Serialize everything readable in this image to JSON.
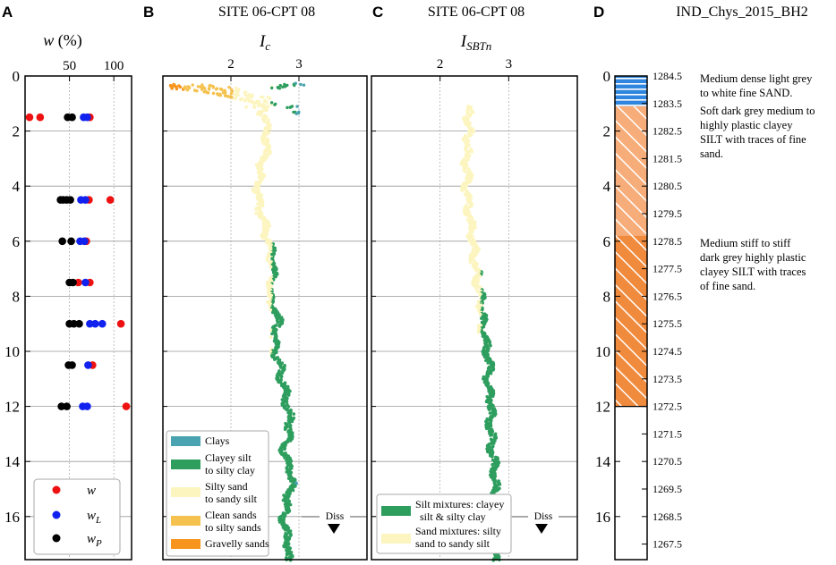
{
  "panels": {
    "A": {
      "letter": "A",
      "axis_title": "w (%)",
      "title_w": "w",
      "title_rest": " (%)"
    },
    "B": {
      "letter": "B",
      "title": "SITE 06-CPT 08",
      "axis_title": "Ic",
      "sym": "I",
      "sub": "c"
    },
    "C": {
      "letter": "C",
      "title": "SITE 06-CPT 08",
      "axis_title": "ISBTn",
      "sym": "I",
      "sub": "SBTn"
    },
    "D": {
      "letter": "D",
      "title": "IND_Chys_2015_BH2"
    }
  },
  "colors": {
    "w": "#ee1111",
    "wl": "#1122ee",
    "wp": "#000000",
    "clays": "#4aa3b0",
    "clayey_silt": "#2e9e5e",
    "silty_sand": "#fdf5c0",
    "clean_sands": "#f5c250",
    "gravelly_sands": "#f7941d",
    "sand_layer": "#2e86de",
    "silt_hatch": "#f08a3c",
    "silt_hatch_light": "#f7ad7a"
  },
  "chart_data": [
    {
      "panel": "A",
      "type": "scatter",
      "title": "",
      "xlabel": "w (%)",
      "ylabel": "",
      "xlim": [
        0,
        120
      ],
      "ylim": [
        17.7,
        0
      ],
      "xticks": [
        50,
        100
      ],
      "xtick_labels": [
        "50",
        "100"
      ],
      "yticks": [
        0,
        2,
        4,
        6,
        8,
        10,
        12,
        14,
        16
      ],
      "ytick_labels": [
        "0",
        "2",
        "4",
        "6",
        "8",
        "10",
        "12",
        "14",
        "16"
      ],
      "legend": [
        "w",
        "wL",
        "wP"
      ],
      "legend_position": "bottom-right",
      "series": [
        {
          "name": "w",
          "points": [
            [
              5,
              1.5
            ],
            [
              17,
              1.5
            ],
            [
              73,
              1.5
            ],
            [
              72,
              4.5
            ],
            [
              96,
              4.5
            ],
            [
              69,
              6
            ],
            [
              60,
              7.5
            ],
            [
              73,
              7.5
            ],
            [
              108,
              9
            ],
            [
              76,
              10.5
            ],
            [
              114,
              12
            ]
          ]
        },
        {
          "name": "wL",
          "points": [
            [
              66,
              1.5
            ],
            [
              70,
              1.5
            ],
            [
              63,
              4.5
            ],
            [
              68,
              4.5
            ],
            [
              62,
              6
            ],
            [
              67,
              6
            ],
            [
              68,
              7.5
            ],
            [
              73,
              9
            ],
            [
              79,
              9
            ],
            [
              87,
              9
            ],
            [
              71,
              10.5
            ],
            [
              65,
              12
            ],
            [
              70,
              12
            ]
          ]
        },
        {
          "name": "wP",
          "points": [
            [
              48,
              1.5
            ],
            [
              53,
              1.5
            ],
            [
              40,
              4.5
            ],
            [
              43,
              4.5
            ],
            [
              47,
              4.5
            ],
            [
              51,
              4.5
            ],
            [
              42,
              6
            ],
            [
              52,
              6
            ],
            [
              50,
              7.5
            ],
            [
              54,
              7.5
            ],
            [
              50,
              9
            ],
            [
              55,
              9
            ],
            [
              61,
              9
            ],
            [
              49,
              10.5
            ],
            [
              53,
              10.5
            ],
            [
              41,
              12
            ],
            [
              47,
              12
            ]
          ]
        }
      ]
    },
    {
      "panel": "B",
      "type": "scatter",
      "title": "SITE 06-CPT 08",
      "xlabel": "Ic",
      "ylabel": "",
      "xlim": [
        1.0,
        4.0
      ],
      "ylim": [
        17.7,
        0
      ],
      "xticks": [
        2,
        3
      ],
      "xtick_labels": [
        "2",
        "3"
      ],
      "yticks": [
        2,
        4,
        6,
        8,
        10,
        12,
        14,
        16
      ],
      "annotation": "Diss",
      "legend": [
        "Clays",
        "Clayey silt to silty clay",
        "Silty sand to sandy silt",
        "Clean sands to silty sands",
        "Gravelly sands"
      ],
      "legend_position": "bottom-left",
      "profile": [
        [
          0.45,
          1.1
        ],
        [
          0.55,
          1.6
        ],
        [
          0.75,
          2.0
        ],
        [
          0.9,
          2.2
        ],
        [
          1.05,
          2.45
        ],
        [
          1.2,
          2.5
        ],
        [
          1.35,
          2.42
        ],
        [
          1.5,
          2.55
        ],
        [
          2.0,
          2.5
        ],
        [
          2.5,
          2.55
        ],
        [
          3.0,
          2.47
        ],
        [
          3.5,
          2.43
        ],
        [
          4.0,
          2.4
        ],
        [
          4.5,
          2.4
        ],
        [
          5.0,
          2.45
        ],
        [
          5.5,
          2.5
        ],
        [
          6.0,
          2.55
        ],
        [
          6.5,
          2.6
        ],
        [
          7.0,
          2.62
        ],
        [
          7.5,
          2.6
        ],
        [
          8.0,
          2.55
        ],
        [
          8.5,
          2.65
        ],
        [
          9.0,
          2.7
        ],
        [
          9.5,
          2.62
        ],
        [
          10.0,
          2.65
        ],
        [
          10.5,
          2.72
        ],
        [
          11.0,
          2.75
        ],
        [
          11.5,
          2.8
        ],
        [
          12.0,
          2.82
        ],
        [
          12.5,
          2.88
        ],
        [
          13.0,
          2.85
        ],
        [
          13.5,
          2.78
        ],
        [
          14.0,
          2.82
        ],
        [
          14.5,
          2.9
        ],
        [
          15.0,
          2.88
        ],
        [
          15.5,
          2.82
        ],
        [
          16.0,
          2.78
        ],
        [
          16.5,
          2.8
        ],
        [
          17.0,
          2.85
        ],
        [
          17.6,
          2.82
        ]
      ],
      "scatter_top": [
        [
          0.35,
          1.1
        ],
        [
          0.4,
          1.25
        ],
        [
          0.42,
          1.35
        ],
        [
          0.35,
          1.5
        ],
        [
          0.45,
          1.6
        ],
        [
          0.38,
          1.75
        ],
        [
          0.5,
          1.85
        ],
        [
          0.45,
          2.05
        ],
        [
          0.55,
          2.15
        ],
        [
          0.6,
          1.95
        ],
        [
          0.7,
          2.25
        ],
        [
          0.75,
          2.3
        ],
        [
          0.85,
          2.2
        ],
        [
          0.95,
          2.35
        ],
        [
          1.05,
          2.4
        ],
        [
          1.15,
          2.3
        ],
        [
          0.8,
          2.5
        ],
        [
          1.0,
          2.6
        ],
        [
          0.4,
          2.65
        ],
        [
          0.3,
          3.0
        ],
        [
          0.35,
          2.78
        ],
        [
          1.35,
          2.95
        ],
        [
          1.1,
          2.9
        ],
        [
          0.65,
          2.1
        ],
        [
          0.9,
          2.45
        ]
      ]
    },
    {
      "panel": "C",
      "type": "scatter",
      "title": "SITE 06-CPT 08",
      "xlabel": "ISBTn",
      "ylabel": "",
      "xlim": [
        1.0,
        4.0
      ],
      "ylim": [
        17.7,
        0
      ],
      "xticks": [
        2,
        3
      ],
      "xtick_labels": [
        "2",
        "3"
      ],
      "yticks": [
        2,
        4,
        6,
        8,
        10,
        12,
        14,
        16
      ],
      "annotation": "Diss",
      "legend": [
        "Silt mixtures: clayey silt & silty clay",
        "Sand mixtures: silty sand to sandy silt"
      ],
      "legend_position": "bottom-left",
      "profile": [
        [
          1.1,
          2.4
        ],
        [
          1.35,
          2.45
        ],
        [
          1.6,
          2.4
        ],
        [
          2.0,
          2.42
        ],
        [
          2.5,
          2.4
        ],
        [
          3.0,
          2.38
        ],
        [
          3.5,
          2.4
        ],
        [
          4.0,
          2.38
        ],
        [
          4.5,
          2.4
        ],
        [
          5.0,
          2.42
        ],
        [
          5.5,
          2.45
        ],
        [
          6.0,
          2.48
        ],
        [
          6.5,
          2.5
        ],
        [
          7.0,
          2.52
        ],
        [
          7.5,
          2.55
        ],
        [
          8.0,
          2.58
        ],
        [
          8.5,
          2.62
        ],
        [
          9.0,
          2.6
        ],
        [
          9.5,
          2.65
        ],
        [
          10.0,
          2.68
        ],
        [
          10.5,
          2.72
        ],
        [
          11.0,
          2.7
        ],
        [
          11.5,
          2.72
        ],
        [
          12.0,
          2.75
        ],
        [
          12.5,
          2.72
        ],
        [
          13.0,
          2.75
        ],
        [
          13.5,
          2.75
        ],
        [
          14.0,
          2.78
        ],
        [
          14.5,
          2.8
        ],
        [
          15.0,
          2.8
        ],
        [
          15.5,
          2.82
        ],
        [
          16.0,
          2.82
        ],
        [
          16.5,
          2.85
        ],
        [
          17.0,
          2.82
        ],
        [
          17.6,
          2.8
        ]
      ]
    }
  ],
  "legends": {
    "A": {
      "w": "w",
      "wL_main": "w",
      "wL_sub": "L",
      "wP_main": "w",
      "wP_sub": "P"
    },
    "B": {
      "clays": "Clays",
      "clayey_silt_1": "Clayey silt",
      "clayey_silt_2": "to silty clay",
      "silty_sand_1": "Silty sand",
      "silty_sand_2": "to sandy silt",
      "clean_sands_1": "Clean sands",
      "clean_sands_2": "to silty sands",
      "gravelly_sands": "Gravelly sands"
    },
    "C": {
      "silt_1": "Silt mixtures: clayey",
      "silt_2": "silt & silty clay",
      "sand_1": "Sand mixtures: silty",
      "sand_2": "sand to sandy silt"
    }
  },
  "borehole": {
    "depth_ticks": [
      "0",
      "2",
      "4",
      "6",
      "8",
      "10",
      "12",
      "14",
      "16"
    ],
    "elevation_ticks": [
      "1284.5",
      "1283.5",
      "1282.5",
      "1281.5",
      "1280.5",
      "1279.5",
      "1278.5",
      "1277.5",
      "1276.5",
      "1275.5",
      "1274.5",
      "1273.5",
      "1272.5",
      "1271.5",
      "1270.5",
      "1269.5",
      "1268.5",
      "1267.5"
    ],
    "elevation_depths": [
      0,
      1,
      2,
      3,
      4,
      5,
      6,
      7,
      8,
      9,
      10,
      11,
      12,
      13,
      14,
      15,
      16,
      17
    ],
    "layers": [
      {
        "from": 0,
        "to": 1.1,
        "type": "sand"
      },
      {
        "from": 1.1,
        "to": 5.8,
        "type": "silt_light"
      },
      {
        "from": 5.8,
        "to": 12.0,
        "type": "silt"
      }
    ],
    "descriptions": [
      {
        "lines": [
          "Medium dense light grey",
          "to white fine SAND."
        ]
      },
      {
        "lines": [
          "Soft dark grey medium to",
          "highly plastic clayey",
          "SILT with traces of fine",
          "sand."
        ]
      },
      {
        "lines": [
          "Medium stiff to stiff",
          "dark grey highly plastic",
          "clayey SILT with traces",
          "of fine sand."
        ]
      }
    ]
  }
}
